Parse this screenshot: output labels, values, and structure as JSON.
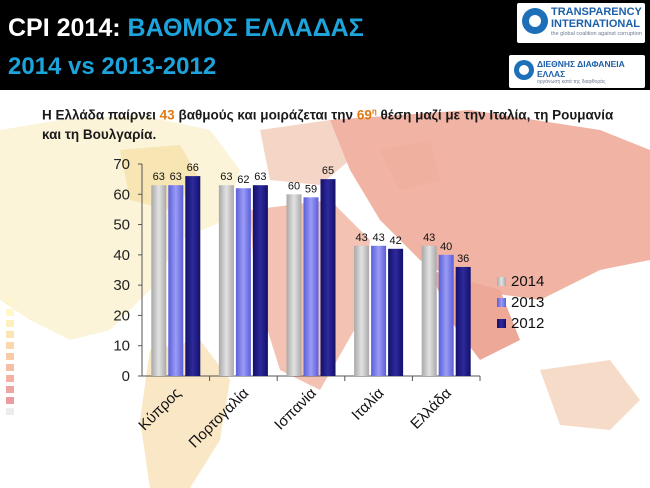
{
  "header": {
    "title_prefix": "CPI 2014:",
    "title_highlight": "ΒΑΘΜΟΣ ΕΛΛΑΔΑΣ",
    "subtitle": "2014 vs 2013-2012"
  },
  "logos": {
    "ti_line1": "TRANSPARENCY",
    "ti_line2": "INTERNATIONAL",
    "ti_tagline": "the global coalition against corruption",
    "de_line1": "ΔΙΕΘΝΗΣ ΔΙΑΦΑΝΕΙΑ",
    "de_line2": "ΕΛΛΑΣ",
    "de_tagline": "οργάνωση κατά της διαφθοράς"
  },
  "statement": {
    "part1": "Η Ελλάδα παίρνει ",
    "score": "43",
    "part2": " βαθμούς και μοιράζεται την ",
    "rank": "69",
    "rank_sup": "η",
    "part3": " θέση μαζί με την Ιταλία, τη Ρουμανία και τη Βουλγαρία."
  },
  "colors": {
    "header_bg": "#000000",
    "accent_blue": "#1ea4dc",
    "highlight_orange": "#e07a10",
    "series_2014": "#c4c4c4",
    "series_2013": "#7b7ef0",
    "series_2012": "#1e1a80"
  },
  "chart_data": {
    "type": "bar",
    "categories": [
      "Κύπρος",
      "Πορτογαλία",
      "Ισπανία",
      "Ιταλία",
      "Ελλάδα"
    ],
    "series": [
      {
        "name": "2014",
        "values": [
          63,
          63,
          60,
          43,
          43
        ]
      },
      {
        "name": "2013",
        "values": [
          63,
          62,
          59,
          43,
          40
        ]
      },
      {
        "name": "2012",
        "values": [
          66,
          63,
          65,
          42,
          36
        ]
      }
    ],
    "ylim": [
      0,
      70
    ],
    "yticks": [
      0,
      10,
      20,
      30,
      40,
      50,
      60,
      70
    ],
    "legend_position": "right",
    "grid": false,
    "data_labels": true
  }
}
